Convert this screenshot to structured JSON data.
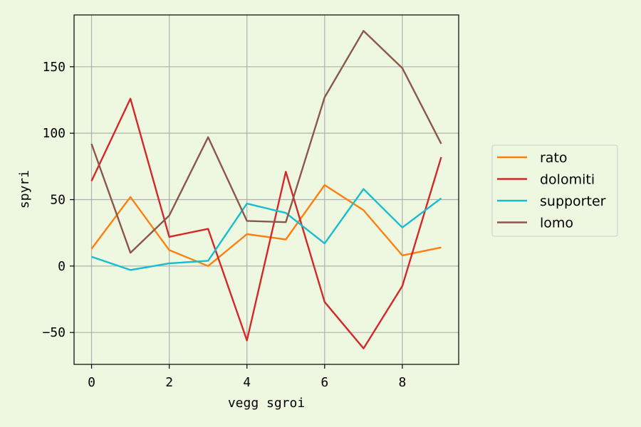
{
  "chart_data": {
    "type": "line",
    "title": "",
    "xlabel": "vegg sgroi",
    "ylabel": "spyri",
    "x": [
      0,
      1,
      2,
      3,
      4,
      5,
      6,
      7,
      8,
      9
    ],
    "xlim": [
      -0.45,
      9.45
    ],
    "ylim": [
      -74,
      189
    ],
    "xticks": [
      0,
      2,
      4,
      6,
      8
    ],
    "yticks": [
      -50,
      0,
      50,
      100,
      150
    ],
    "xtick_labels": [
      "0",
      "2",
      "4",
      "6",
      "8"
    ],
    "ytick_labels": [
      "−50",
      "0",
      "50",
      "100",
      "150"
    ],
    "grid": true,
    "legend_position": "right-outside",
    "colors": {
      "background": "#eef8e0",
      "grid": "#b0b0b0"
    },
    "series": [
      {
        "name": "rato",
        "color": "#ff7f0e",
        "values": [
          13,
          52,
          12,
          0,
          24,
          20,
          61,
          42,
          8,
          14
        ]
      },
      {
        "name": "dolomiti",
        "color": "#d62728",
        "values": [
          64,
          126,
          22,
          28,
          -56,
          71,
          -27,
          -62,
          -15,
          82
        ]
      },
      {
        "name": "supporter",
        "color": "#17becf",
        "values": [
          7,
          -3,
          2,
          4,
          47,
          40,
          17,
          58,
          29,
          51
        ]
      },
      {
        "name": "lomo",
        "color": "#8c564b",
        "values": [
          92,
          10,
          38,
          97,
          34,
          33,
          127,
          177,
          149,
          92
        ]
      }
    ]
  }
}
